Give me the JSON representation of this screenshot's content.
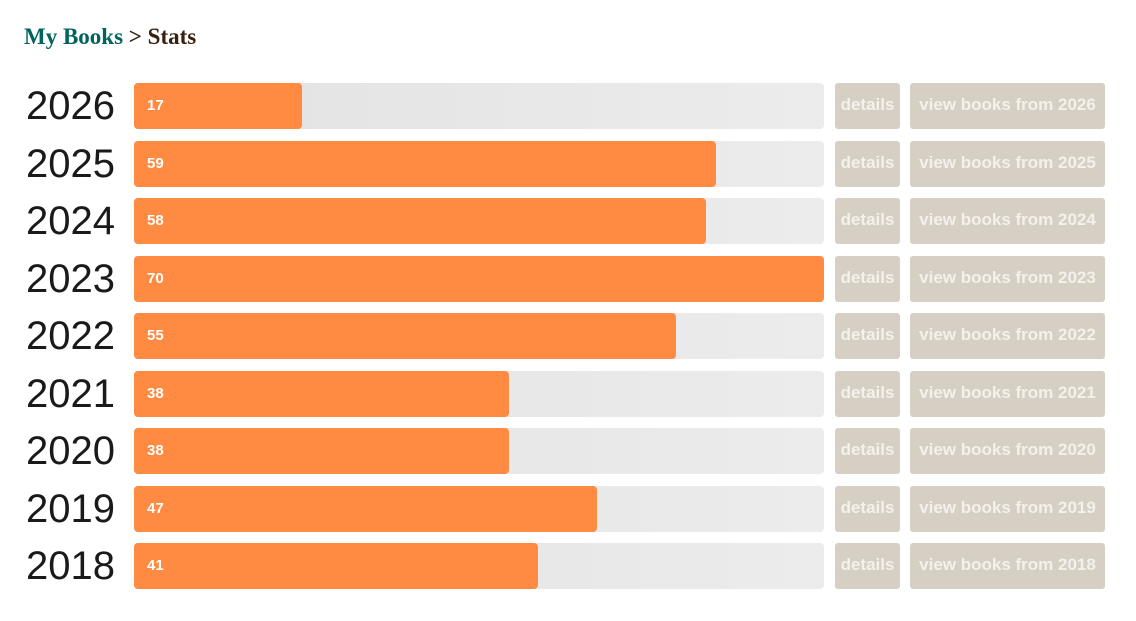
{
  "breadcrumb": {
    "link": "My Books",
    "separator": ">",
    "current": "Stats"
  },
  "rows": [
    {
      "year": "2026",
      "count": 17,
      "details": "details",
      "view": "view books from 2026"
    },
    {
      "year": "2025",
      "count": 59,
      "details": "details",
      "view": "view books from 2025"
    },
    {
      "year": "2024",
      "count": 58,
      "details": "details",
      "view": "view books from 2024"
    },
    {
      "year": "2023",
      "count": 70,
      "details": "details",
      "view": "view books from 2023"
    },
    {
      "year": "2022",
      "count": 55,
      "details": "details",
      "view": "view books from 2022"
    },
    {
      "year": "2021",
      "count": 38,
      "details": "details",
      "view": "view books from 2021"
    },
    {
      "year": "2020",
      "count": 38,
      "details": "details",
      "view": "view books from 2020"
    },
    {
      "year": "2019",
      "count": 47,
      "details": "details",
      "view": "view books from 2019"
    },
    {
      "year": "2018",
      "count": 41,
      "details": "details",
      "view": "view books from 2018"
    }
  ]
}
